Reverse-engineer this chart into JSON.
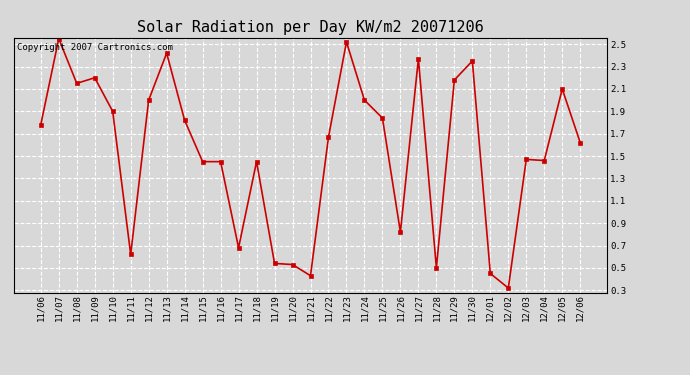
{
  "title": "Solar Radiation per Day KW/m2 20071206",
  "copyright": "Copyright 2007 Cartronics.com",
  "labels": [
    "11/06",
    "11/07",
    "11/08",
    "11/09",
    "11/10",
    "11/11",
    "11/12",
    "11/13",
    "11/14",
    "11/15",
    "11/16",
    "11/17",
    "11/18",
    "11/19",
    "11/20",
    "11/21",
    "11/22",
    "11/23",
    "11/24",
    "11/25",
    "11/26",
    "11/27",
    "11/28",
    "11/29",
    "11/30",
    "12/01",
    "12/02",
    "12/03",
    "12/04",
    "12/05",
    "12/06"
  ],
  "values": [
    1.78,
    2.55,
    2.15,
    2.2,
    1.9,
    0.62,
    2.0,
    2.42,
    1.82,
    1.45,
    1.45,
    0.68,
    1.45,
    0.54,
    0.53,
    0.43,
    1.67,
    2.52,
    2.0,
    1.84,
    0.82,
    2.37,
    0.5,
    2.18,
    2.35,
    0.45,
    0.32,
    1.47,
    1.46,
    2.1,
    1.62
  ],
  "line_color": "#cc0000",
  "marker_color": "#cc0000",
  "bg_color": "#d8d8d8",
  "grid_color": "#ffffff",
  "ylim_min": 0.28,
  "ylim_max": 2.56,
  "yticks": [
    0.3,
    0.5,
    0.7,
    0.9,
    1.1,
    1.3,
    1.5,
    1.7,
    1.9,
    2.1,
    2.3,
    2.5
  ],
  "title_fontsize": 11,
  "tick_fontsize": 6.5,
  "copyright_fontsize": 6.5
}
